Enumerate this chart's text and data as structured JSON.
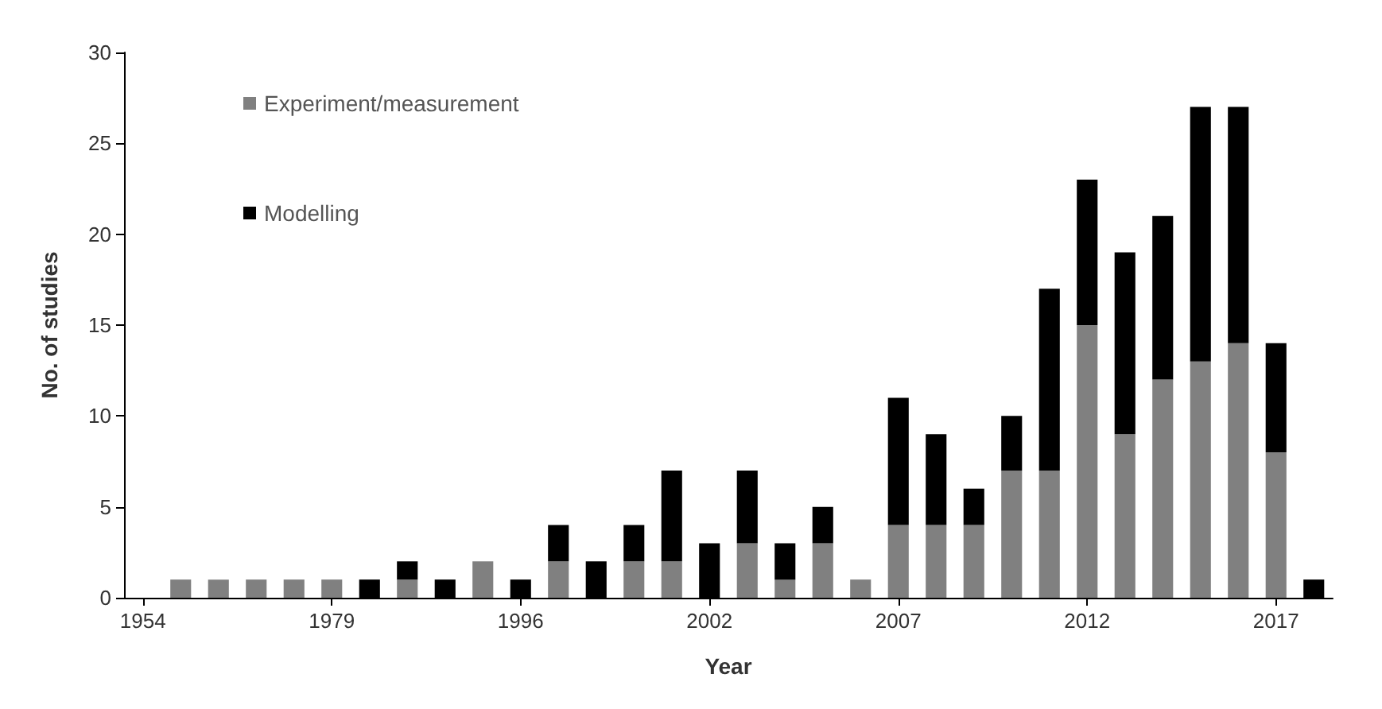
{
  "chart_data": {
    "type": "bar",
    "stacked": true,
    "xlabel": "Year",
    "ylabel": "No. of studies",
    "categories": [
      "1954",
      null,
      null,
      null,
      null,
      "1979",
      null,
      null,
      null,
      null,
      "1996",
      null,
      null,
      null,
      null,
      "2002",
      null,
      null,
      null,
      null,
      "2007",
      null,
      null,
      null,
      null,
      "2012",
      null,
      null,
      null,
      null,
      "2017",
      null
    ],
    "series": [
      {
        "name": "Experiment/measurement",
        "color": "#808080",
        "values": [
          0,
          1,
          1,
          1,
          1,
          1,
          0,
          1,
          0,
          2,
          0,
          2,
          0,
          2,
          2,
          0,
          3,
          1,
          3,
          1,
          4,
          4,
          4,
          7,
          7,
          15,
          9,
          12,
          13,
          14,
          8,
          0
        ]
      },
      {
        "name": "Modelling",
        "color": "#000000",
        "values": [
          0,
          0,
          0,
          0,
          0,
          0,
          1,
          1,
          1,
          0,
          1,
          2,
          2,
          2,
          5,
          3,
          4,
          2,
          2,
          0,
          7,
          5,
          2,
          3,
          10,
          8,
          10,
          9,
          14,
          13,
          6,
          1
        ]
      }
    ],
    "ylim": [
      0,
      30
    ],
    "yticks": [
      0,
      5,
      10,
      15,
      20,
      25,
      30
    ],
    "grid": false,
    "legend": "top left"
  }
}
